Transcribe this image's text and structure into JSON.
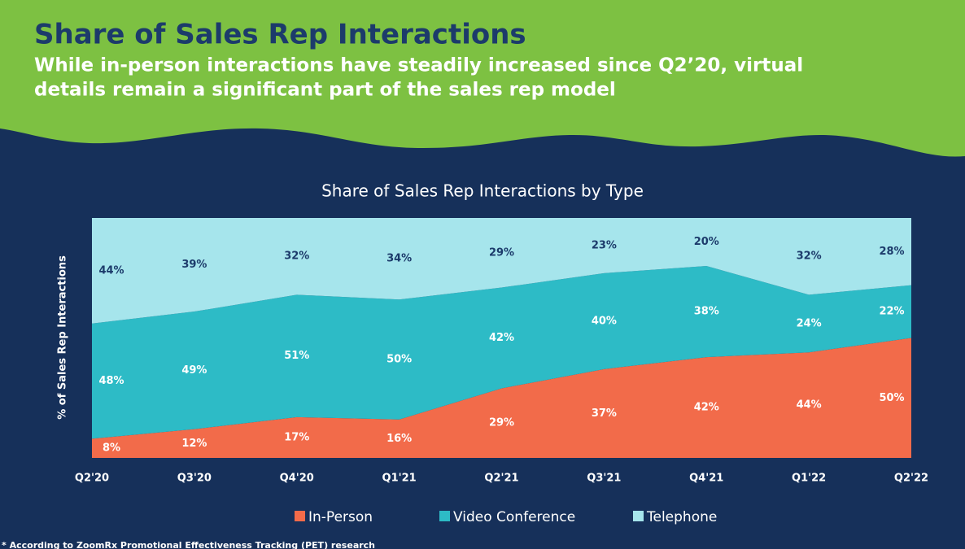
{
  "header": {
    "title": "Share of Sales Rep Interactions",
    "subtitle": [
      "While in-person interactions have steadily increased since Q2’20, virtual",
      "details remain a significant part of the sales rep model"
    ]
  },
  "footnote": "* According to ZoomRx Promotional Effectiveness Tracking (PET) research",
  "chart_data": {
    "type": "stacked_area",
    "title": "Share of Sales Rep Interactions by Type",
    "y_label": "% of Sales Rep Interactions",
    "categories": [
      "Q2'20",
      "Q3'20",
      "Q4'20",
      "Q1'21",
      "Q2'21",
      "Q3'21",
      "Q4'21",
      "Q1'22",
      "Q2'22"
    ],
    "series": [
      {
        "name": "In-Person",
        "color": "#f26b4a",
        "values": [
          8,
          12,
          17,
          16,
          29,
          37,
          42,
          44,
          50
        ],
        "value_labels": [
          "8%",
          "12%",
          "17%",
          "16%",
          "29%",
          "37%",
          "42%",
          "44%",
          "50%"
        ]
      },
      {
        "name": "Video Conference",
        "color": "#2dbbc6",
        "values": [
          48,
          49,
          51,
          50,
          42,
          40,
          38,
          24,
          22
        ],
        "value_labels": [
          "48%",
          "49%",
          "51%",
          "50%",
          "42%",
          "40%",
          "38%",
          "24%",
          "22%"
        ]
      },
      {
        "name": "Telephone",
        "color": "#a6e5ec",
        "values": [
          44,
          39,
          32,
          34,
          29,
          23,
          20,
          32,
          28
        ],
        "value_labels": [
          "44%",
          "39%",
          "32%",
          "34%",
          "29%",
          "23%",
          "20%",
          "32%",
          "28%"
        ]
      }
    ],
    "ylim": [
      0,
      100
    ],
    "legend": "bottom"
  }
}
